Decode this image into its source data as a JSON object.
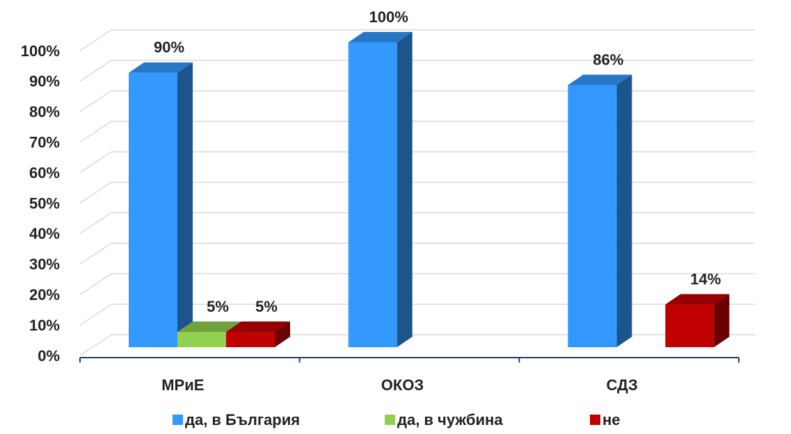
{
  "chart_data": {
    "type": "bar3d",
    "categories": [
      "МРиЕ",
      "ОКОЗ",
      "СДЗ"
    ],
    "series": [
      {
        "name": "да, в България",
        "color": "#3399ff",
        "values": [
          90,
          100,
          86
        ],
        "value_labels": [
          "90%",
          "100%",
          "86%"
        ]
      },
      {
        "name": "да, в чужбина",
        "color": "#92d050",
        "values": [
          5,
          null,
          null
        ],
        "value_labels": [
          "5%",
          null,
          null
        ]
      },
      {
        "name": "не",
        "color": "#c00000",
        "values": [
          5,
          null,
          14
        ],
        "value_labels": [
          "5%",
          null,
          "14%"
        ]
      }
    ],
    "ylim": [
      0,
      100
    ],
    "yticks": [
      {
        "value": 0,
        "label": "0%"
      },
      {
        "value": 10,
        "label": "10%"
      },
      {
        "value": 20,
        "label": "20%"
      },
      {
        "value": 30,
        "label": "30%"
      },
      {
        "value": 40,
        "label": "40%"
      },
      {
        "value": 50,
        "label": "50%"
      },
      {
        "value": 60,
        "label": "60%"
      },
      {
        "value": 70,
        "label": "70%"
      },
      {
        "value": 80,
        "label": "80%"
      },
      {
        "value": 90,
        "label": "90%"
      },
      {
        "value": 100,
        "label": "100%"
      }
    ],
    "grid": true,
    "legend": "bottom"
  }
}
